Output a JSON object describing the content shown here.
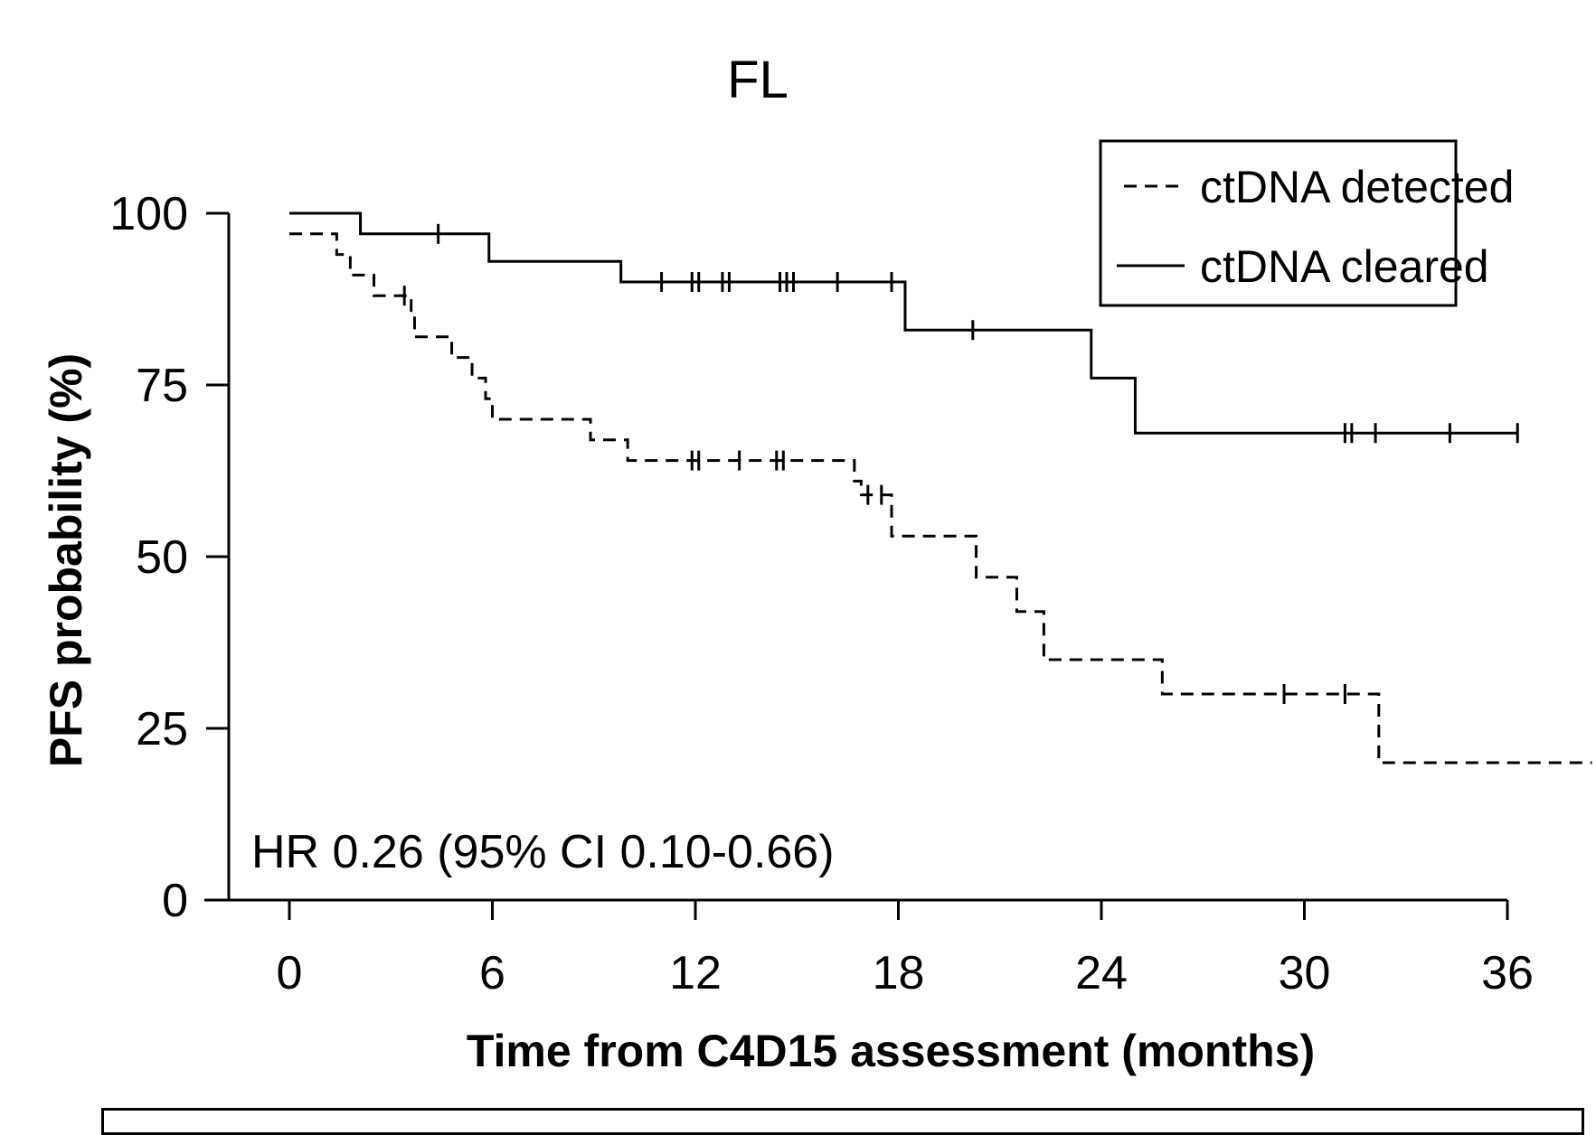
{
  "chart_data": {
    "type": "line",
    "title": "FL",
    "xlabel": "Time from C4D15 assessment (months)",
    "ylabel": "PFS probability (%)",
    "xlim": [
      0,
      36
    ],
    "ylim": [
      0,
      100
    ],
    "xticks": [
      0,
      6,
      12,
      18,
      24,
      30,
      36
    ],
    "yticks": [
      0,
      25,
      50,
      75,
      100
    ],
    "grid": false,
    "legend": {
      "position": "top-right",
      "entries": [
        {
          "name": "ctDNA detected",
          "style": "dashed"
        },
        {
          "name": "ctDNA cleared",
          "style": "solid"
        }
      ]
    },
    "annotation": "HR 0.26 (95% CI 0.10-0.66)",
    "series": [
      {
        "name": "ctDNA detected",
        "style": "dashed",
        "color": "#000000",
        "steps": [
          {
            "x": 0,
            "y": 97
          },
          {
            "x": 1.4,
            "y": 94
          },
          {
            "x": 1.8,
            "y": 91
          },
          {
            "x": 2.5,
            "y": 88
          },
          {
            "x": 3.6,
            "y": 85
          },
          {
            "x": 3.7,
            "y": 82
          },
          {
            "x": 4.8,
            "y": 79
          },
          {
            "x": 5.4,
            "y": 76
          },
          {
            "x": 5.8,
            "y": 73
          },
          {
            "x": 6.0,
            "y": 70
          },
          {
            "x": 8.9,
            "y": 67
          },
          {
            "x": 10.0,
            "y": 64
          },
          {
            "x": 16.7,
            "y": 61
          },
          {
            "x": 16.9,
            "y": 59
          },
          {
            "x": 17.8,
            "y": 53
          },
          {
            "x": 20.3,
            "y": 47
          },
          {
            "x": 21.5,
            "y": 42
          },
          {
            "x": 22.3,
            "y": 35
          },
          {
            "x": 25.8,
            "y": 30
          },
          {
            "x": 32.2,
            "y": 20
          }
        ],
        "end_x": 38.5,
        "censored": [
          {
            "x": 3.4,
            "y": 88
          },
          {
            "x": 11.9,
            "y": 64
          },
          {
            "x": 12.1,
            "y": 64
          },
          {
            "x": 13.3,
            "y": 64
          },
          {
            "x": 14.4,
            "y": 64
          },
          {
            "x": 14.6,
            "y": 64
          },
          {
            "x": 17.1,
            "y": 59
          },
          {
            "x": 17.5,
            "y": 59
          },
          {
            "x": 29.4,
            "y": 30
          },
          {
            "x": 31.2,
            "y": 30
          }
        ]
      },
      {
        "name": "ctDNA cleared",
        "style": "solid",
        "color": "#000000",
        "steps": [
          {
            "x": 0,
            "y": 100
          },
          {
            "x": 2.1,
            "y": 97
          },
          {
            "x": 5.9,
            "y": 93
          },
          {
            "x": 9.8,
            "y": 90
          },
          {
            "x": 18.2,
            "y": 83
          },
          {
            "x": 23.7,
            "y": 76
          },
          {
            "x": 25.0,
            "y": 68
          }
        ],
        "end_x": 36.3,
        "censored": [
          {
            "x": 4.4,
            "y": 97
          },
          {
            "x": 11.0,
            "y": 90
          },
          {
            "x": 11.9,
            "y": 90
          },
          {
            "x": 12.1,
            "y": 90
          },
          {
            "x": 12.8,
            "y": 90
          },
          {
            "x": 13.0,
            "y": 90
          },
          {
            "x": 14.5,
            "y": 90
          },
          {
            "x": 14.7,
            "y": 90
          },
          {
            "x": 14.9,
            "y": 90
          },
          {
            "x": 16.2,
            "y": 90
          },
          {
            "x": 17.8,
            "y": 90
          },
          {
            "x": 20.2,
            "y": 83
          },
          {
            "x": 31.2,
            "y": 68
          },
          {
            "x": 31.4,
            "y": 68
          },
          {
            "x": 32.1,
            "y": 68
          },
          {
            "x": 34.3,
            "y": 68
          },
          {
            "x": 36.3,
            "y": 68
          }
        ]
      }
    ]
  }
}
